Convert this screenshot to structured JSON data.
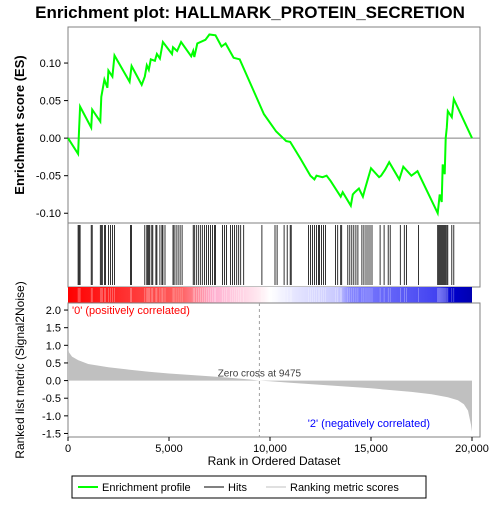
{
  "chart_data": {
    "type": "line",
    "title": "Enrichment plot: HALLMARK_PROTEIN_SECRETION",
    "es_panel": {
      "ylabel": "Enrichment score (ES)",
      "xlim": [
        0,
        20000
      ],
      "ylim": [
        -0.113,
        0.148
      ],
      "yticks": [
        -0.1,
        -0.05,
        0.0,
        0.05,
        0.1
      ],
      "ytick_labels": [
        "-0.10",
        "-0.05",
        "0.00",
        "0.05",
        "0.10"
      ],
      "series_name": "Enrichment profile",
      "color": "#00ff00",
      "points": [
        [
          0,
          0.0
        ],
        [
          500,
          -0.021
        ],
        [
          550,
          0.012
        ],
        [
          600,
          0.042
        ],
        [
          1150,
          0.014
        ],
        [
          1200,
          0.038
        ],
        [
          1600,
          0.022
        ],
        [
          1650,
          0.055
        ],
        [
          1800,
          0.078
        ],
        [
          1950,
          0.067
        ],
        [
          2000,
          0.09
        ],
        [
          2200,
          0.082
        ],
        [
          2300,
          0.11
        ],
        [
          3050,
          0.075
        ],
        [
          3150,
          0.096
        ],
        [
          3650,
          0.071
        ],
        [
          3800,
          0.082
        ],
        [
          3900,
          0.097
        ],
        [
          4000,
          0.091
        ],
        [
          4100,
          0.105
        ],
        [
          4300,
          0.103
        ],
        [
          4400,
          0.112
        ],
        [
          4550,
          0.106
        ],
        [
          4700,
          0.128
        ],
        [
          5150,
          0.112
        ],
        [
          5200,
          0.121
        ],
        [
          5400,
          0.116
        ],
        [
          5600,
          0.128
        ],
        [
          6100,
          0.109
        ],
        [
          6200,
          0.116
        ],
        [
          6250,
          0.108
        ],
        [
          6400,
          0.126
        ],
        [
          6800,
          0.131
        ],
        [
          7000,
          0.138
        ],
        [
          7300,
          0.137
        ],
        [
          7600,
          0.122
        ],
        [
          7800,
          0.126
        ],
        [
          8200,
          0.107
        ],
        [
          8500,
          0.105
        ],
        [
          9700,
          0.032
        ],
        [
          10300,
          0.009
        ],
        [
          10800,
          -0.004
        ],
        [
          11000,
          -0.005
        ],
        [
          11500,
          -0.027
        ],
        [
          12000,
          -0.05
        ],
        [
          12200,
          -0.055
        ],
        [
          12300,
          -0.05
        ],
        [
          12600,
          -0.052
        ],
        [
          12800,
          -0.05
        ],
        [
          13000,
          -0.057
        ],
        [
          13500,
          -0.078
        ],
        [
          13600,
          -0.072
        ],
        [
          14000,
          -0.09
        ],
        [
          14100,
          -0.075
        ],
        [
          14200,
          -0.072
        ],
        [
          14400,
          -0.067
        ],
        [
          14600,
          -0.078
        ],
        [
          14700,
          -0.068
        ],
        [
          15000,
          -0.04
        ],
        [
          15400,
          -0.052
        ],
        [
          15500,
          -0.05
        ],
        [
          15700,
          -0.042
        ],
        [
          15900,
          -0.032
        ],
        [
          16400,
          -0.055
        ],
        [
          16600,
          -0.038
        ],
        [
          17000,
          -0.05
        ],
        [
          17300,
          -0.044
        ],
        [
          18300,
          -0.1
        ],
        [
          18400,
          -0.075
        ],
        [
          18500,
          -0.085
        ],
        [
          18550,
          -0.035
        ],
        [
          18650,
          -0.048
        ],
        [
          18700,
          0.0
        ],
        [
          18750,
          0.014
        ],
        [
          18800,
          0.036
        ],
        [
          19000,
          0.028
        ],
        [
          19100,
          0.052
        ],
        [
          20000,
          0.0
        ]
      ]
    },
    "hits_panel": {
      "series_name": "Hits",
      "hit_positions": [
        500,
        550,
        600,
        1150,
        1200,
        1600,
        1650,
        1700,
        1800,
        1850,
        2000,
        2100,
        2200,
        2300,
        3100,
        3150,
        3800,
        3900,
        3950,
        4000,
        4050,
        4150,
        4200,
        4350,
        4400,
        4550,
        4650,
        4700,
        4800,
        5200,
        5250,
        5350,
        5450,
        5550,
        5650,
        6200,
        6250,
        6350,
        6450,
        6550,
        6650,
        6750,
        6850,
        6950,
        7050,
        7150,
        7250,
        7300,
        7650,
        7750,
        7850,
        8050,
        8150,
        8250,
        8350,
        8450,
        8550,
        8700,
        9600,
        10250,
        10350,
        10700,
        10850,
        11000,
        11050,
        11900,
        12000,
        12100,
        12200,
        12300,
        12400,
        12450,
        12550,
        12650,
        12750,
        13250,
        13350,
        13500,
        13550,
        13850,
        13950,
        14050,
        14150,
        14250,
        14350,
        14550,
        14650,
        14750,
        14850,
        14950,
        15050,
        15450,
        15650,
        15850,
        15950,
        16450,
        16650,
        16750,
        17350,
        18300,
        18350,
        18400,
        18450,
        18500,
        18550,
        18600,
        18650,
        18700,
        18750,
        18800,
        19000,
        19100
      ]
    },
    "metric_panel": {
      "ylabel": "Ranked list metric (Signal2Noise)",
      "xlabel": "Rank in Ordered Dataset",
      "series_name": "Ranking metric scores",
      "ylim": [
        -1.6,
        2.2
      ],
      "yticks": [
        -1.5,
        -1.0,
        -0.5,
        0.0,
        0.5,
        1.0,
        1.5,
        2.0
      ],
      "ytick_labels": [
        "-1.5",
        "-1.0",
        "-0.5",
        "0.0",
        "0.5",
        "1.0",
        "1.5",
        "2.0"
      ],
      "xticks": [
        0,
        5000,
        10000,
        15000,
        20000
      ],
      "xtick_labels": [
        "0",
        "5,000",
        "10,000",
        "15,000",
        "20,000"
      ],
      "profile": [
        [
          0,
          0.95
        ],
        [
          50,
          0.8
        ],
        [
          200,
          0.68
        ],
        [
          500,
          0.58
        ],
        [
          1000,
          0.47
        ],
        [
          2000,
          0.38
        ],
        [
          3000,
          0.31
        ],
        [
          4000,
          0.25
        ],
        [
          5000,
          0.2
        ],
        [
          6000,
          0.16
        ],
        [
          7000,
          0.12
        ],
        [
          8000,
          0.08
        ],
        [
          9000,
          0.03
        ],
        [
          9475,
          0.0
        ],
        [
          10000,
          -0.02
        ],
        [
          11000,
          -0.06
        ],
        [
          12000,
          -0.1
        ],
        [
          13000,
          -0.14
        ],
        [
          14000,
          -0.18
        ],
        [
          15000,
          -0.22
        ],
        [
          16000,
          -0.27
        ],
        [
          17000,
          -0.32
        ],
        [
          18000,
          -0.39
        ],
        [
          18800,
          -0.47
        ],
        [
          19300,
          -0.56
        ],
        [
          19600,
          -0.67
        ],
        [
          19800,
          -0.85
        ],
        [
          19950,
          -1.25
        ],
        [
          20000,
          -1.45
        ]
      ],
      "zero_cross": 9475,
      "zero_cross_label": "Zero cross at 9475",
      "pos_label": "'0' (positively correlated)",
      "neg_label": "'2' (negatively correlated)",
      "pos_color": "#ff0000",
      "neg_color": "#0000ff"
    },
    "legend": {
      "placement": "bottom",
      "items": [
        {
          "label": "Enrichment profile",
          "color": "#00ff00"
        },
        {
          "label": "Hits",
          "color": "#000000"
        },
        {
          "label": "Ranking metric scores",
          "color": "#c0c0c0"
        }
      ]
    }
  }
}
